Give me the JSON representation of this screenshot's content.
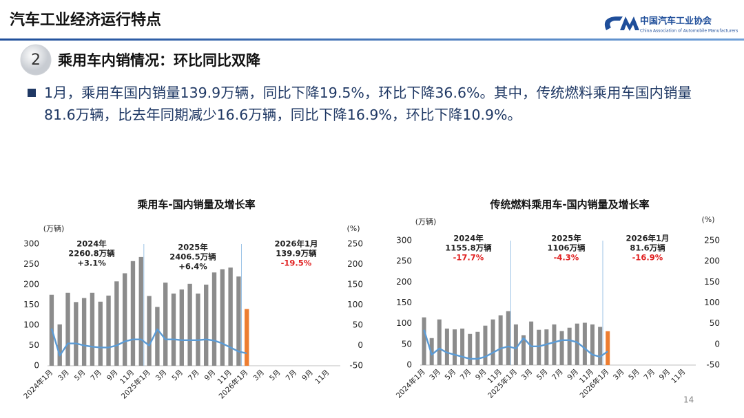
{
  "header": {
    "title": "汽车工业经济运行特点",
    "logo_cn": "中国汽车工业协会",
    "logo_en": "China Association of Automobile Manufacturers"
  },
  "section": {
    "number": "2",
    "title": "乘用车内销情况：环比同比双降"
  },
  "bullet": "1月，乘用车国内销量139.9万辆，同比下降19.5%，环比下降36.6%。其中，传统燃料乘用车国内销量81.6万辆，比去年同期减少16.6万辆，同比下降16.9%，环比下降10.9%。",
  "page_number": "14",
  "chart_data": [
    {
      "type": "bar_line",
      "title": "乘用车-国内销量及增长率",
      "y_label": "(万辆)",
      "y2_label": "(%)",
      "categories": [
        "2024年1月",
        null,
        "3月",
        null,
        "5月",
        null,
        "7月",
        null,
        "9月",
        null,
        "11月",
        null,
        "2025年1月",
        null,
        "3月",
        null,
        "5月",
        null,
        "7月",
        null,
        "9月",
        null,
        "11月",
        null,
        "2026年1月",
        null,
        "3月",
        null,
        "5月",
        null,
        "7月",
        null,
        "9月",
        null,
        "11月",
        null
      ],
      "series": [
        {
          "type": "bar",
          "color": "#8c8c8c",
          "values": [
            175,
            102,
            180,
            157,
            167,
            180,
            158,
            173,
            208,
            228,
            258,
            268,
            172,
            145,
            205,
            178,
            188,
            202,
            178,
            200,
            230,
            238,
            242,
            220,
            null,
            null,
            null,
            null,
            null,
            null,
            null,
            null,
            null,
            null,
            null,
            null
          ]
        },
        {
          "type": "bar",
          "color": "#ed7d31",
          "values": [
            null,
            null,
            null,
            null,
            null,
            null,
            null,
            null,
            null,
            null,
            null,
            null,
            null,
            null,
            null,
            null,
            null,
            null,
            null,
            null,
            null,
            null,
            null,
            null,
            139.9,
            null,
            null,
            null,
            null,
            null,
            null,
            null,
            null,
            null,
            null,
            null
          ]
        },
        {
          "type": "line",
          "axis": "y2",
          "color": "#5b9bd5",
          "values": [
            42,
            -25,
            5,
            5,
            0,
            -3,
            -5,
            -5,
            0,
            10,
            15,
            15,
            0,
            40,
            15,
            15,
            13,
            13,
            13,
            15,
            12,
            5,
            -5,
            -15,
            -19.5,
            null,
            null,
            null,
            null,
            null,
            null,
            null,
            null,
            null,
            null,
            null
          ]
        }
      ],
      "ylim": [
        0,
        300
      ],
      "yticks": [
        0,
        50,
        100,
        150,
        200,
        250,
        300
      ],
      "y2lim": [
        -50,
        250
      ],
      "y2ticks": [
        -50,
        0,
        50,
        100,
        150,
        200,
        250
      ],
      "annotations": [
        {
          "period": "2024年",
          "volume": "2260.8万辆",
          "growth": "+3.1%",
          "growth_color": "#222222"
        },
        {
          "period": "2025年",
          "volume": "2406.5万辆",
          "growth": "+6.4%",
          "growth_color": "#222222"
        },
        {
          "period": "2026年1月",
          "volume": "139.9万辆",
          "growth": "-19.5%",
          "growth_color": "#e02020"
        }
      ]
    },
    {
      "type": "bar_line",
      "title": "传统燃料乘用车-国内销量及增长率",
      "y_label": "(万辆)",
      "y2_label": "(%)",
      "categories": [
        "2024年1月",
        null,
        "3月",
        null,
        "5月",
        null,
        "7月",
        null,
        "9月",
        null,
        "11月",
        null,
        "2025年1月",
        null,
        "3月",
        null,
        "5月",
        null,
        "7月",
        null,
        "9月",
        null,
        "11月",
        null,
        "2026年1月",
        null,
        "3月",
        null,
        "5月",
        null,
        "7月",
        null,
        "9月",
        null,
        "11月",
        null
      ],
      "series": [
        {
          "type": "bar",
          "color": "#8c8c8c",
          "values": [
            115,
            65,
            110,
            88,
            86,
            88,
            75,
            80,
            95,
            110,
            120,
            130,
            98,
            72,
            105,
            85,
            86,
            98,
            82,
            90,
            100,
            102,
            98,
            92,
            null,
            null,
            null,
            null,
            null,
            null,
            null,
            null,
            null,
            null,
            null,
            null
          ]
        },
        {
          "type": "bar",
          "color": "#ed7d31",
          "values": [
            null,
            null,
            null,
            null,
            null,
            null,
            null,
            null,
            null,
            null,
            null,
            null,
            null,
            null,
            null,
            null,
            null,
            null,
            null,
            null,
            null,
            null,
            null,
            null,
            81.6,
            null,
            null,
            null,
            null,
            null,
            null,
            null,
            null,
            null,
            null,
            null
          ]
        },
        {
          "type": "line",
          "axis": "y2",
          "color": "#5b9bd5",
          "values": [
            35,
            -25,
            -10,
            -20,
            -25,
            -30,
            -35,
            -35,
            -30,
            -20,
            -10,
            -5,
            -10,
            15,
            -5,
            -5,
            0,
            5,
            10,
            10,
            5,
            -10,
            -25,
            -30,
            -16.9,
            null,
            null,
            null,
            null,
            null,
            null,
            null,
            null,
            null,
            null,
            null
          ]
        }
      ],
      "ylim": [
        0,
        300
      ],
      "yticks": [
        0,
        50,
        100,
        150,
        200,
        250,
        300
      ],
      "y2lim": [
        -50,
        250
      ],
      "y2ticks": [
        -50,
        0,
        50,
        100,
        150,
        200,
        250
      ],
      "annotations": [
        {
          "period": "2024年",
          "volume": "1155.8万辆",
          "growth": "-17.7%",
          "growth_color": "#e02020"
        },
        {
          "period": "2025年",
          "volume": "1106万辆",
          "growth": "-4.3%",
          "growth_color": "#e02020"
        },
        {
          "period": "2026年1月",
          "volume": "81.6万辆",
          "growth": "-16.9%",
          "growth_color": "#e02020"
        }
      ]
    }
  ]
}
